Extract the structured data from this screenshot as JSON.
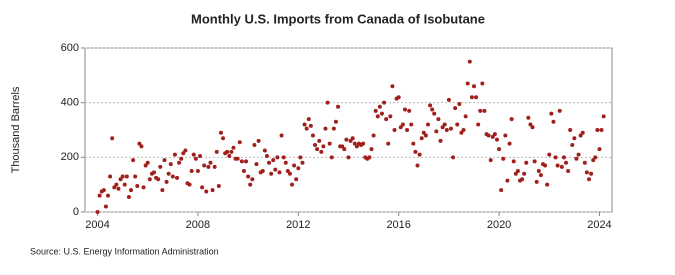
{
  "chart_data": {
    "type": "scatter",
    "title": "Monthly U.S. Imports from Canada of Isobutane",
    "y_label": "Thousand Barrels",
    "source": "Source: U.S. Energy Information Administration",
    "xlim": [
      2003.5,
      2024.5
    ],
    "xticks": [
      2004,
      2008,
      2012,
      2016,
      2020,
      2024
    ],
    "ylim": [
      0,
      600
    ],
    "yticks": [
      0,
      200,
      400,
      600
    ],
    "grid": true,
    "series": [
      {
        "name": "Isobutane",
        "color": "#a0201c",
        "x": [
          2004,
          2004.083,
          2004.167,
          2004.25,
          2004.333,
          2004.417,
          2004.5,
          2004.583,
          2004.667,
          2004.75,
          2004.833,
          2004.917,
          2005,
          2005.083,
          2005.167,
          2005.25,
          2005.333,
          2005.417,
          2005.5,
          2005.583,
          2005.667,
          2005.75,
          2005.833,
          2005.917,
          2006,
          2006.083,
          2006.167,
          2006.25,
          2006.333,
          2006.417,
          2006.5,
          2006.583,
          2006.667,
          2006.75,
          2006.833,
          2006.917,
          2007,
          2007.083,
          2007.167,
          2007.25,
          2007.333,
          2007.417,
          2007.5,
          2007.583,
          2007.667,
          2007.75,
          2007.833,
          2007.917,
          2008,
          2008.083,
          2008.167,
          2008.25,
          2008.333,
          2008.417,
          2008.5,
          2008.583,
          2008.667,
          2008.75,
          2008.833,
          2008.917,
          2009,
          2009.083,
          2009.167,
          2009.25,
          2009.333,
          2009.417,
          2009.5,
          2009.583,
          2009.667,
          2009.75,
          2009.833,
          2009.917,
          2010,
          2010.083,
          2010.167,
          2010.25,
          2010.333,
          2010.417,
          2010.5,
          2010.583,
          2010.667,
          2010.75,
          2010.833,
          2010.917,
          2011,
          2011.083,
          2011.167,
          2011.25,
          2011.333,
          2011.417,
          2011.5,
          2011.583,
          2011.667,
          2011.75,
          2011.833,
          2011.917,
          2012,
          2012.083,
          2012.167,
          2012.25,
          2012.333,
          2012.417,
          2012.5,
          2012.583,
          2012.667,
          2012.75,
          2012.833,
          2012.917,
          2013,
          2013.083,
          2013.167,
          2013.25,
          2013.333,
          2013.417,
          2013.5,
          2013.583,
          2013.667,
          2013.75,
          2013.833,
          2013.917,
          2014,
          2014.083,
          2014.167,
          2014.25,
          2014.333,
          2014.417,
          2014.5,
          2014.583,
          2014.667,
          2014.75,
          2014.833,
          2014.917,
          2015,
          2015.083,
          2015.167,
          2015.25,
          2015.333,
          2015.417,
          2015.5,
          2015.583,
          2015.667,
          2015.75,
          2015.833,
          2015.917,
          2016,
          2016.083,
          2016.167,
          2016.25,
          2016.333,
          2016.417,
          2016.5,
          2016.583,
          2016.667,
          2016.75,
          2016.833,
          2016.917,
          2017,
          2017.083,
          2017.167,
          2017.25,
          2017.333,
          2017.417,
          2017.5,
          2017.583,
          2017.667,
          2017.75,
          2017.833,
          2017.917,
          2018,
          2018.083,
          2018.167,
          2018.25,
          2018.333,
          2018.417,
          2018.5,
          2018.583,
          2018.667,
          2018.75,
          2018.833,
          2018.917,
          2019,
          2019.083,
          2019.167,
          2019.25,
          2019.333,
          2019.417,
          2019.5,
          2019.583,
          2019.667,
          2019.75,
          2019.833,
          2019.917,
          2020,
          2020.083,
          2020.167,
          2020.25,
          2020.333,
          2020.417,
          2020.5,
          2020.583,
          2020.667,
          2020.75,
          2020.833,
          2020.917,
          2021,
          2021.083,
          2021.167,
          2021.25,
          2021.333,
          2021.417,
          2021.5,
          2021.583,
          2021.667,
          2021.75,
          2021.833,
          2021.917,
          2022,
          2022.083,
          2022.167,
          2022.25,
          2022.333,
          2022.417,
          2022.5,
          2022.583,
          2022.667,
          2022.75,
          2022.833,
          2022.917,
          2023,
          2023.083,
          2023.167,
          2023.25,
          2023.333,
          2023.417,
          2023.5,
          2023.583,
          2023.667,
          2023.75,
          2023.833,
          2023.917,
          2024,
          2024.083,
          2024.167
        ],
        "values": [
          0,
          60,
          75,
          80,
          20,
          60,
          130,
          270,
          90,
          100,
          85,
          120,
          130,
          100,
          130,
          55,
          80,
          190,
          130,
          95,
          250,
          240,
          90,
          170,
          180,
          120,
          140,
          145,
          125,
          120,
          165,
          80,
          190,
          110,
          140,
          175,
          130,
          210,
          125,
          180,
          195,
          215,
          225,
          105,
          100,
          150,
          210,
          195,
          150,
          205,
          90,
          170,
          75,
          165,
          180,
          80,
          165,
          220,
          95,
          290,
          270,
          215,
          220,
          205,
          220,
          235,
          195,
          195,
          255,
          185,
          150,
          185,
          130,
          100,
          120,
          245,
          175,
          260,
          145,
          150,
          225,
          205,
          180,
          140,
          190,
          155,
          200,
          145,
          280,
          200,
          180,
          150,
          140,
          100,
          170,
          120,
          160,
          200,
          180,
          320,
          305,
          340,
          315,
          280,
          245,
          230,
          260,
          220,
          240,
          305,
          400,
          250,
          200,
          305,
          330,
          385,
          240,
          240,
          230,
          265,
          200,
          260,
          270,
          250,
          240,
          250,
          245,
          250,
          200,
          195,
          200,
          230,
          280,
          370,
          350,
          385,
          360,
          400,
          340,
          250,
          350,
          460,
          300,
          415,
          420,
          310,
          320,
          375,
          300,
          370,
          320,
          250,
          220,
          170,
          210,
          270,
          290,
          280,
          320,
          390,
          375,
          360,
          295,
          340,
          260,
          310,
          320,
          300,
          410,
          305,
          200,
          380,
          320,
          395,
          290,
          300,
          350,
          470,
          550,
          420,
          460,
          420,
          320,
          370,
          470,
          370,
          285,
          280,
          190,
          275,
          285,
          265,
          230,
          80,
          195,
          280,
          115,
          250,
          340,
          185,
          140,
          150,
          115,
          120,
          140,
          180,
          345,
          320,
          310,
          185,
          110,
          150,
          135,
          175,
          170,
          100,
          210,
          360,
          330,
          200,
          170,
          370,
          165,
          200,
          180,
          150,
          300,
          245,
          270,
          195,
          210,
          280,
          290,
          180,
          145,
          120,
          140,
          190,
          200,
          300,
          230,
          300,
          350
        ]
      }
    ]
  }
}
